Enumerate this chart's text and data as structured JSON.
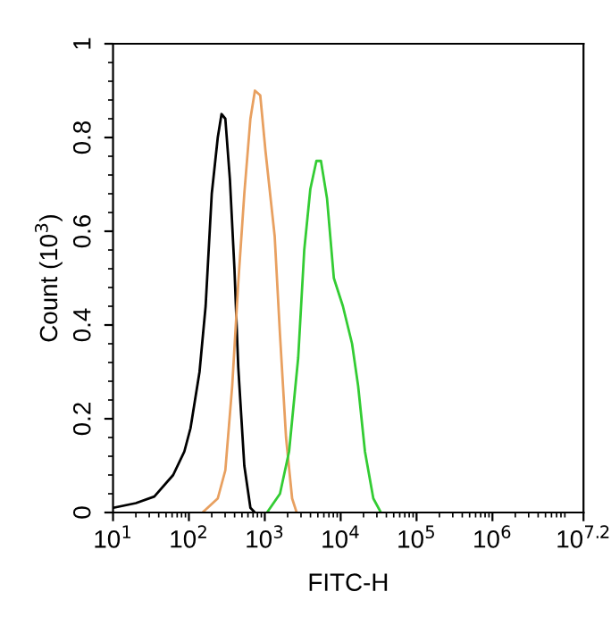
{
  "chart_data": {
    "type": "line",
    "xlabel": "FITC-H",
    "ylabel": "Count (10$^{3}$)",
    "log": "x",
    "xlim": [
      10,
      15848932
    ],
    "xticks": [
      {
        "value": 10,
        "label": "10$^{1}$"
      },
      {
        "value": 100,
        "label": "10$^{2}$"
      },
      {
        "value": 1000,
        "label": "10$^{3}$"
      },
      {
        "value": 10000,
        "label": "10$^{4}$"
      },
      {
        "value": 100000,
        "label": "10$^{5}$"
      },
      {
        "value": 1000000,
        "label": "10$^{6}$"
      },
      {
        "value": 15848932,
        "label": "10$^{7.2}$"
      }
    ],
    "ylim": [
      0,
      1
    ],
    "yticks": [
      0,
      0.2,
      0.4,
      0.6,
      0.8,
      1
    ],
    "grid": false,
    "marker": "none",
    "line_style": "solid",
    "series": [
      {
        "color": "#000000",
        "x": [
          10,
          20,
          35,
          62,
          87,
          105,
          138,
          166,
          200,
          240,
          269,
          302,
          347,
          398,
          447,
          537,
          646,
          741
        ],
        "values": [
          0.01,
          0.02,
          0.034,
          0.08,
          0.13,
          0.18,
          0.3,
          0.44,
          0.68,
          0.8,
          0.85,
          0.84,
          0.71,
          0.52,
          0.31,
          0.1,
          0.01,
          0
        ]
      },
      {
        "color": "#e8a060",
        "x": [
          151,
          240,
          302,
          372,
          447,
          537,
          646,
          741,
          871,
          1023,
          1349,
          1585,
          1905,
          2291,
          2630
        ],
        "values": [
          0,
          0.03,
          0.09,
          0.27,
          0.49,
          0.68,
          0.84,
          0.9,
          0.89,
          0.77,
          0.59,
          0.38,
          0.16,
          0.03,
          0
        ]
      },
      {
        "color": "#33cc33",
        "x": [
          1070,
          1585,
          2089,
          2754,
          3311,
          3981,
          4786,
          5495,
          6607,
          8128,
          10700,
          14130,
          16980,
          20890,
          26920,
          33880
        ],
        "values": [
          0,
          0.04,
          0.13,
          0.33,
          0.56,
          0.69,
          0.75,
          0.75,
          0.67,
          0.5,
          0.44,
          0.36,
          0.27,
          0.13,
          0.03,
          0
        ]
      }
    ]
  }
}
